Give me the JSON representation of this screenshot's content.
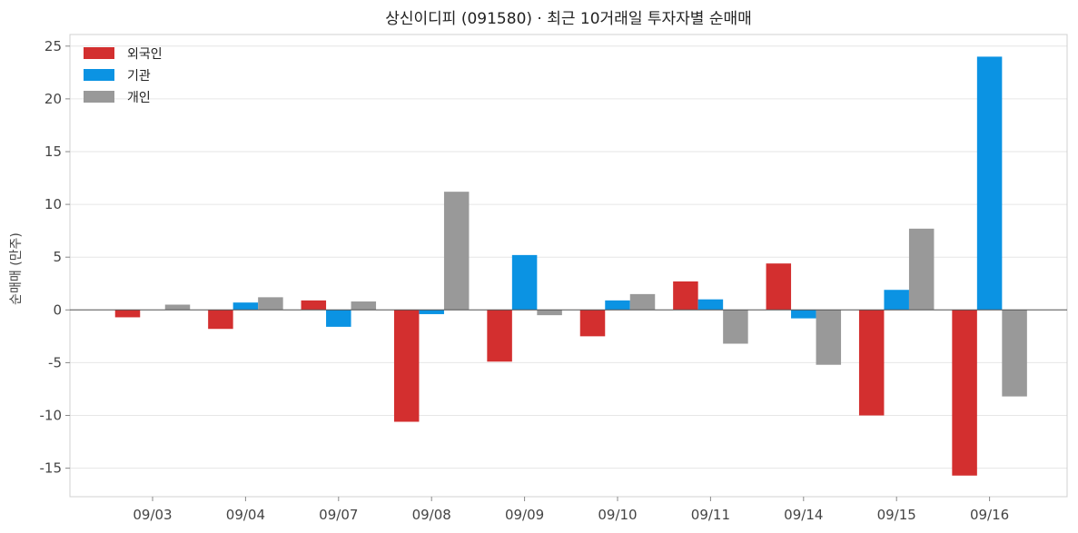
{
  "chart_data": {
    "type": "bar",
    "title": "상신이디피 (091580) · 최근 10거래일 투자자별 순매매",
    "xlabel": "",
    "ylabel": "순매매 (만주)",
    "categories": [
      "09/03",
      "09/04",
      "09/07",
      "09/08",
      "09/09",
      "09/10",
      "09/11",
      "09/14",
      "09/15",
      "09/16"
    ],
    "series": [
      {
        "name": "외국인",
        "color": "#d32f2f",
        "values": [
          -0.7,
          -1.8,
          0.9,
          -10.6,
          -4.9,
          -2.5,
          2.7,
          4.4,
          -10.0,
          -15.7
        ]
      },
      {
        "name": "기관",
        "color": "#0b93e3",
        "values": [
          0.0,
          0.7,
          -1.6,
          -0.4,
          5.2,
          0.9,
          1.0,
          -0.8,
          1.9,
          24.0
        ]
      },
      {
        "name": "개인",
        "color": "#999999",
        "values": [
          0.5,
          1.2,
          0.8,
          11.2,
          -0.5,
          1.5,
          -3.2,
          -5.2,
          7.7,
          -8.2
        ]
      }
    ],
    "ylim": [
      -17.7,
      26.1
    ],
    "yticks": [
      -15,
      -10,
      -5,
      0,
      5,
      10,
      15,
      20,
      25
    ],
    "ytick_labels": [
      "-15",
      "-10",
      "-5",
      "0",
      "5",
      "10",
      "15",
      "20",
      "25"
    ],
    "grid": true,
    "legend_position": "top-left",
    "zero_line": true
  }
}
